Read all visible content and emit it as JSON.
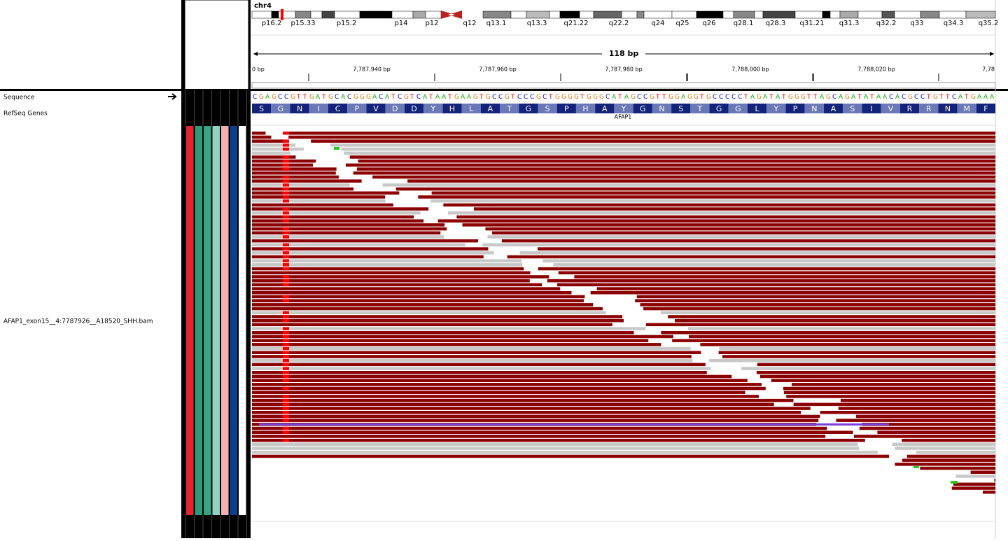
{
  "header": {
    "chromosome": "chr4",
    "bands": [
      "p16.2",
      "p15.33",
      "p15.2",
      "p14",
      "p12",
      "q12",
      "q13.1",
      "q13.3",
      "q21.22",
      "q22.2",
      "q24",
      "q25",
      "q26",
      "q28.1",
      "q28.3",
      "q31.21",
      "q31.3",
      "q32.2",
      "q33",
      "q34.3",
      "q35.2"
    ],
    "span": "118 bp",
    "ruler": [
      "0 bp",
      "7,787,940 bp",
      "7,787,960 bp",
      "7,787,980 bp",
      "7,788,000 bp",
      "7,788,020 bp",
      "7,78"
    ]
  },
  "tracks": {
    "sequence_name": "Sequence",
    "genes_name": "RefSeq Genes",
    "alignment_name": "AFAP1_exon15__4:7787926__A18520_SHH.bam"
  },
  "sequence": "CGAGCCGTTGATGCACGGGACATCGTCATAATGAAGTGCCGTCCCGCTGGGGTGGGCATAGCCGTTGGAGGTGCCCCCTAGATATGGGTTAGCAGATATAACACGCCTGTTCATGAAA",
  "amino_acids": [
    "S",
    "G",
    "N",
    "I",
    "C",
    "P",
    "V",
    "D",
    "D",
    "Y",
    "H",
    "L",
    "A",
    "T",
    "G",
    "S",
    "P",
    "H",
    "A",
    "Y",
    "G",
    "N",
    "S",
    "T",
    "G",
    "G",
    "L",
    "Y",
    "P",
    "N",
    "A",
    "S",
    "I",
    "V",
    "R",
    "R",
    "N",
    "M",
    "F"
  ],
  "gene": "AFAP1"
}
